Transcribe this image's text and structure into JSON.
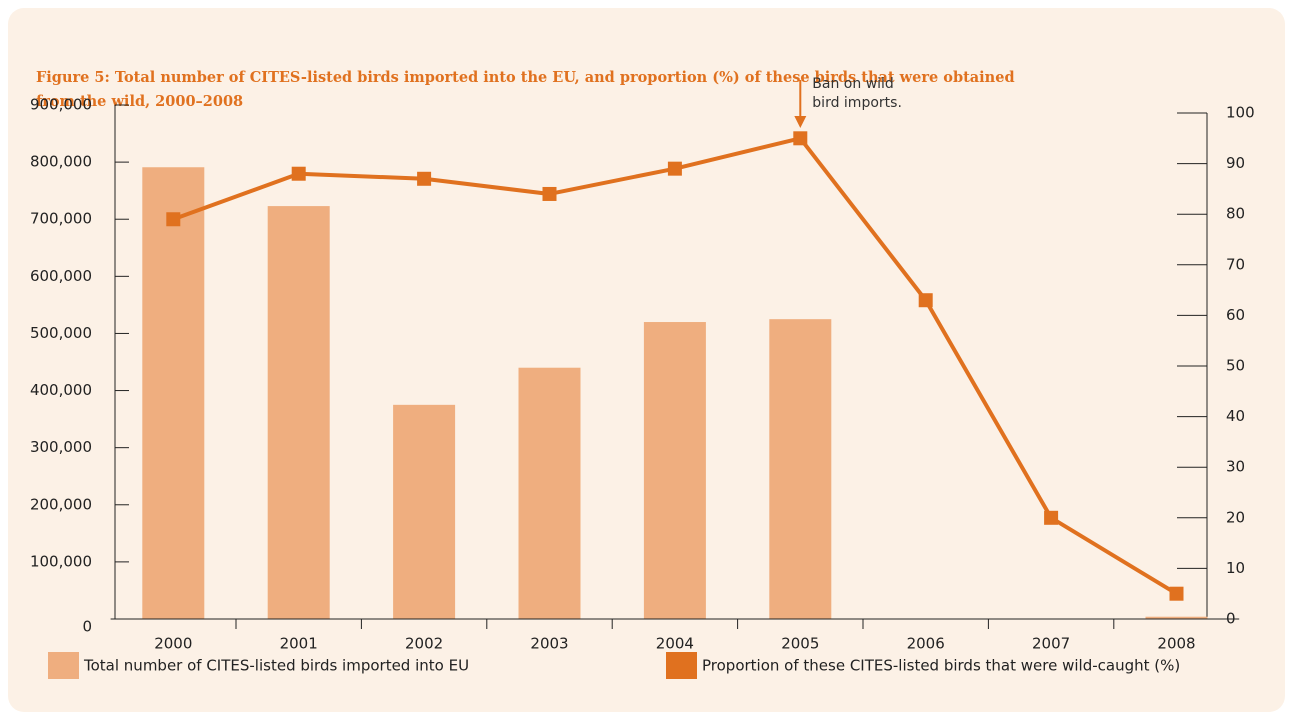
{
  "chart_data": {
    "type": "combo",
    "title": "Figure 5: Total number of CITES-listed birds imported into the EU, and proportion (%) of these birds that were obtained from the wild, 2000–2008",
    "annotation": {
      "category": 5,
      "lines": [
        "Ban on wild",
        "bird imports."
      ]
    },
    "categories": [
      "2000",
      "2001",
      "2002",
      "2003",
      "2004",
      "2005",
      "2006",
      "2007",
      "2008"
    ],
    "series": [
      {
        "name": "Total number of CITES-listed birds imported into EU",
        "type": "bar",
        "color": "#efae7f",
        "values": [
          791000,
          723000,
          375000,
          440000,
          520000,
          525000,
          0,
          0,
          4000
        ]
      },
      {
        "name": "Proportion of these CITES-listed birds that were wild-caught (%)",
        "type": "line",
        "axis": "y2",
        "color": "#e0711f",
        "values": [
          79,
          88,
          87,
          84,
          89,
          95,
          63,
          20,
          5
        ]
      }
    ],
    "ylim": [
      0,
      900000
    ],
    "yticks": [
      0,
      {
        "value": 100000,
        "label": "100,000"
      },
      {
        "value": 200000,
        "label": "200,000"
      },
      {
        "value": 300000,
        "label": "300,000"
      },
      {
        "value": 400000,
        "label": "400,000"
      },
      {
        "value": 500000,
        "label": "500,000"
      },
      {
        "value": 600000,
        "label": "600,000"
      },
      {
        "value": 700000,
        "label": "700,000"
      },
      {
        "value": 800000,
        "label": "800,000"
      },
      {
        "value": 900000,
        "label": "900,000"
      }
    ],
    "y2lim": [
      0,
      100
    ],
    "y2ticks": [
      0,
      10,
      20,
      30,
      40,
      50,
      60,
      70,
      80,
      90,
      100
    ]
  }
}
